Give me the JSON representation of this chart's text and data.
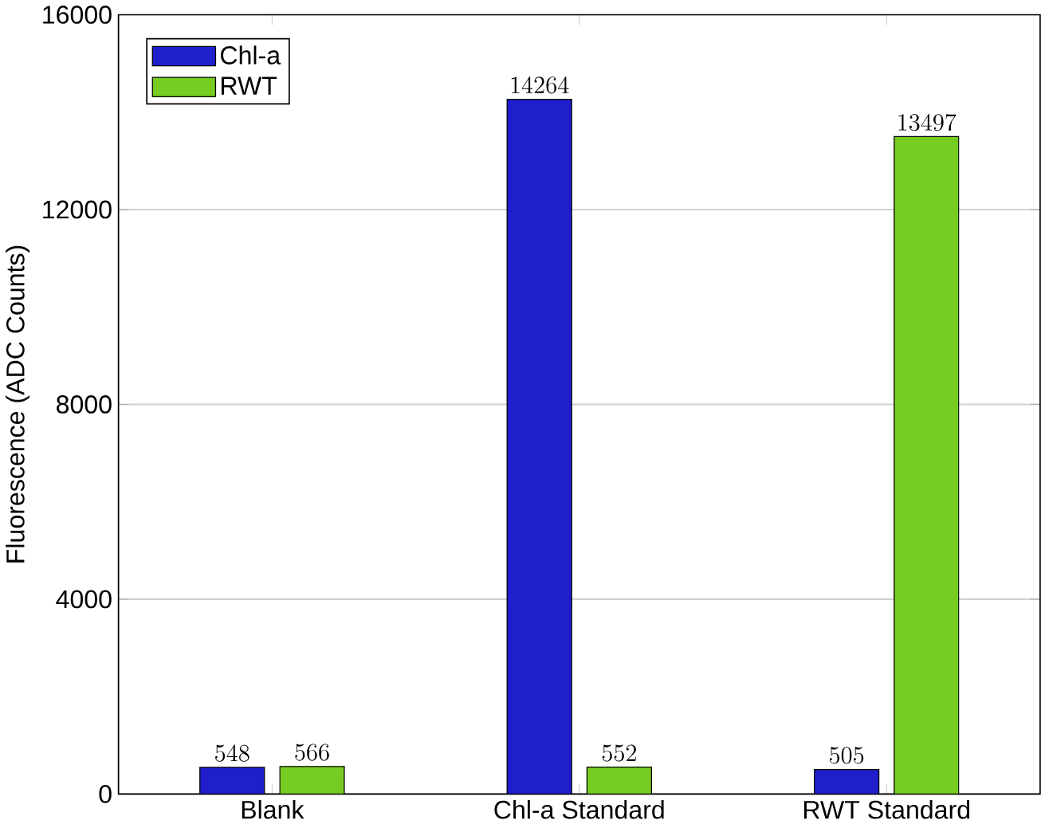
{
  "chart_data": {
    "type": "bar",
    "ylabel": "Fluorescence (ADC Counts)",
    "categories": [
      "Blank",
      "Chl-a Standard",
      "RWT Standard"
    ],
    "series": [
      {
        "name": "Chl-a",
        "color": "#1f1fcc",
        "values": [
          548,
          14264,
          505
        ]
      },
      {
        "name": "RWT",
        "color": "#77cc22",
        "values": [
          566,
          552,
          13497
        ]
      }
    ],
    "ylim": [
      0,
      16000
    ],
    "yticks": [
      0,
      4000,
      8000,
      12000,
      16000
    ],
    "grid": "y",
    "legend": "top left",
    "data_labels": true
  }
}
